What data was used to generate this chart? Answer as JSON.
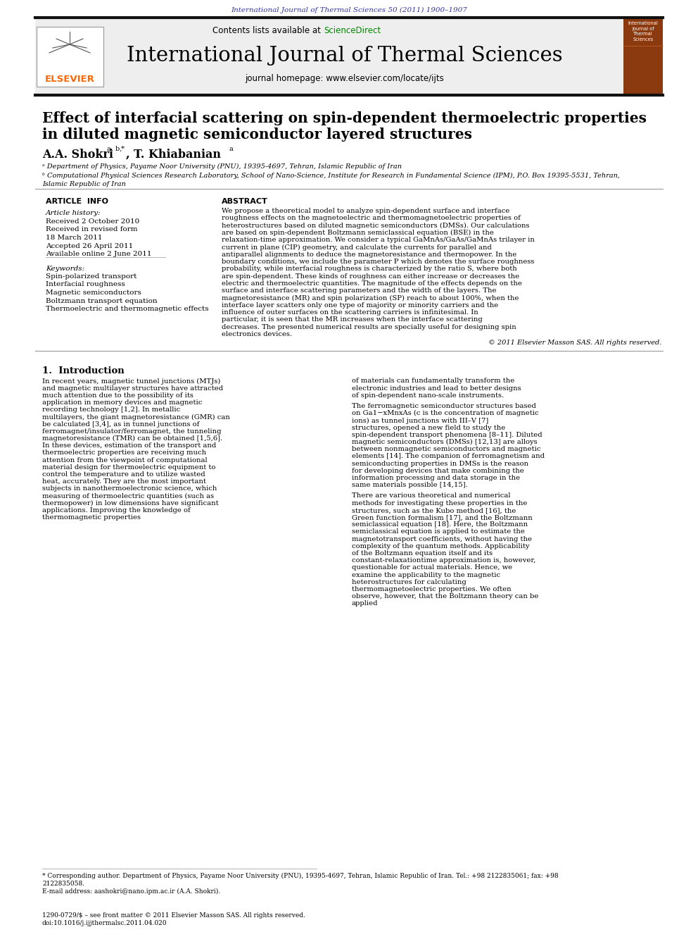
{
  "journal_ref": "International Journal of Thermal Sciences 50 (2011) 1900–1907",
  "journal_name": "International Journal of Thermal Sciences",
  "journal_homepage": "journal homepage: www.elsevier.com/locate/ijts",
  "contents_text": "Contents lists available at ",
  "sciencedirect_text": "ScienceDirect",
  "article_info_title": "ARTICLE  INFO",
  "abstract_title": "ABSTRACT",
  "article_history_label": "Article history:",
  "article_history": "Received 2 October 2010\nReceived in revised form\n18 March 2011\nAccepted 26 April 2011\nAvailable online 2 June 2011",
  "keywords_label": "Keywords:",
  "keywords": "Spin-polarized transport\nInterfacial roughness\nMagnetic semiconductors\nBoltzmann transport equation\nThermoelectric and thermomagnetic effects",
  "abstract_text": "We propose a theoretical model to analyze spin-dependent surface and interface roughness effects on the magnetoelectric and thermomagnetoelectric properties of heterostructures based on diluted magnetic semiconductors (DMSs). Our calculations are based on spin-dependent Boltzmann semiclassical equation (BSE) in the relaxation-time approximation. We consider a typical GaMnAs/GaAs/GaMnAs trilayer in current in plane (CIP) geometry, and calculate the currents for parallel and antiparallel alignments to deduce the magnetoresistance and thermopower. In the boundary conditions, we include the parameter P which denotes the surface roughness probability, while interfacial roughness is characterized by the ratio S, where both are spin-dependent. These kinds of roughness can either increase or decreases the electric and thermoelectric quantities. The magnitude of the effects depends on the surface and interface scattering parameters and the width of the layers. The magnetoresistance (MR) and spin polarization (SP) reach to about 100%, when the interface layer scatters only one type of majority or minority carriers and the influence of outer surfaces on the scattering carriers is infinitesimal. In particular, it is seen that the MR increases when the interface scattering decreases. The presented numerical results are specially useful for designing spin electronics devices.",
  "copyright": "© 2011 Elsevier Masson SAS. All rights reserved.",
  "section1_title": "1.  Introduction",
  "intro_col1": "   In recent years, magnetic tunnel junctions (MTJs) and magnetic multilayer structures have attracted much attention due to the possibility of its application in memory devices and magnetic recording technology [1,2]. In metallic multilayers, the giant magnetoresistance (GMR) can be calculated [3,4], as in tunnel junctions of ferromagnet/insulator/ferromagnet, the tunneling magnetoresistance (TMR) can be obtained [1,5,6]. In these devices, estimation of the transport and thermoelectric properties are receiving much attention from the viewpoint of computational material design for thermoelectric equipment to control the temperature and to utilize wasted heat, accurately. They are the most important subjects in nanothermoelectronic science, which measuring of thermoelectric quantities (such as thermopower) in low dimensions have significant applications. Improving the knowledge of thermomagnetic properties",
  "intro_col2_p1": "of materials can fundamentally transform the electronic industries and lead to better designs of spin-dependent nano-scale instruments.",
  "intro_col2_p2": "   The ferromagnetic semiconductor structures based on Ga1−xMnxAs (c is the concentration of magnetic ions) as tunnel junctions with III–V [7] structures, opened a new field to study the spin-dependent transport phenomena [8–11]. Diluted magnetic semiconductors (DMSs) [12,13] are alloys between nonmagnetic semiconductors and magnetic elements [14]. The companion of ferromagnetism and semiconducting properties in DMSs is the reason for developing devices that make combining the information processing and data storage in the same materials possible [14,15].",
  "intro_col2_p3": "   There are various theoretical and numerical methods for investigating these properties in the structures, such as the Kubo method [16], the Green function formalism [17], and the Boltzmann semiclassical equation [18]. Here, the Boltzmann semiclassical equation is applied to estimate the magnetotransport coefficients, without having the complexity of the quantum methods. Applicability of the Boltzmann equation itself and its constant-relaxationtime approximation is, however, questionable for actual materials. Hence, we examine the applicability to the magnetic heterostructures for calculating thermomagnetoelectric properties. We often observe, however, that the Boltzmann theory can be applied",
  "footnote_star": "* Corresponding author. Department of Physics, Payame Noor University (PNU), 19395-4697, Tehran, Islamic Republic of Iran. Tel.: +98 2122835061; fax: +98",
  "footnote_star2": "2122835058.",
  "footnote_email": "E-mail address: aashokri@nano.ipm.ac.ir (A.A. Shokri).",
  "issn_line": "1290-0729/$ – see front matter © 2011 Elsevier Masson SAS. All rights reserved.",
  "doi_line": "doi:10.1016/j.ijjthermalsc.2011.04.020",
  "bg_color": "#ffffff",
  "header_bg": "#f0f0f0",
  "elsevier_color": "#ff6600",
  "sciencedirect_color": "#008800",
  "thick_line_color": "#222222",
  "brown_cover_color": "#8B4513"
}
